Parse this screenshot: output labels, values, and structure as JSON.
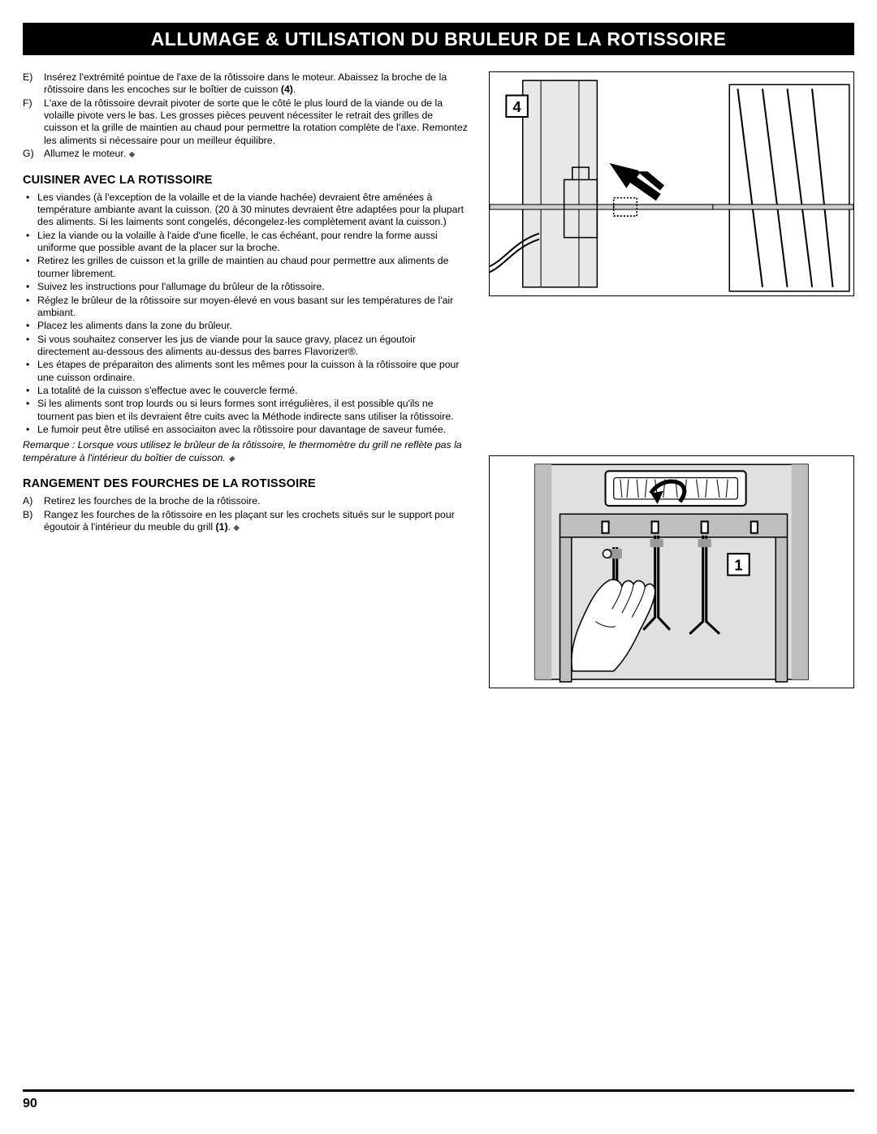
{
  "title": "ALLUMAGE & UTILISATION DU BRULEUR DE LA ROTISSOIRE",
  "page_number": "90",
  "lettered_steps": [
    {
      "marker": "E)",
      "text": "Insérez l'extrémité pointue de l'axe de la rôtissoire dans le moteur. Abaissez la broche de la rôtissoire dans les encoches sur le boîtier de cuisson ",
      "bold_suffix": "(4)",
      "after": "."
    },
    {
      "marker": "F)",
      "text": "L'axe de la rôtissoire devrait pivoter de sorte que le côté le plus lourd de la viande ou de la volaille pivote vers le bas. Les grosses pièces peuvent nécessiter le retrait des grilles de cuisson et la grille de maintien au chaud pour permettre la rotation complète de l'axe. Remontez les aliments si nécessaire pour un meilleur équilibre."
    },
    {
      "marker": "G)",
      "text": "Allumez le moteur. ",
      "diamond": true
    }
  ],
  "section1": {
    "heading": "CUISINER AVEC LA ROTISSOIRE",
    "bullets": [
      "Les viandes (à l'exception de la volaille et de la viande hachée) devraient être aménées à température ambiante avant la cuisson. (20 à 30 minutes devraient être adaptées pour la plupart des aliments. Si les laiments sont congelés, décongelez-les complètement avant la cuisson.)",
      "Liez la viande ou la volaille à l'aide d'une ficelle, le cas échéant, pour rendre la forme aussi uniforme que possible avant de la placer sur la broche.",
      "Retirez les grilles de cuisson et la grille de maintien au chaud pour permettre aux aliments de tourner librement.",
      "Suivez les instructions pour l'allumage du brûleur de la rôtissoire.",
      "Réglez le brûleur de la rôtissoire sur moyen-élevé en vous basant sur les températures de l'air ambiant.",
      "Placez les aliments dans la zone du brûleur.",
      "Si vous souhaitez conserver les jus de viande pour la sauce gravy, placez un égoutoir directement au-dessous des aliments au-dessus des barres Flavorizer®.",
      "Les étapes de préparaiton des aliments sont les mêmes pour la cuisson à la rôtissoire que pour une cuisson ordinaire.",
      "La totalité de la cuisson s'effectue avec le couvercle fermé.",
      "Si les aliments sont trop lourds ou si leurs formes sont irrégulières, il est possible qu'ils ne tournent pas bien et ils devraient être cuits avec la Méthode indirecte sans utiliser la rôtissoire.",
      "Le fumoir peut être utilisé en associaiton avec la rôtissoire pour davantage de saveur fumée."
    ],
    "note": "Remarque : Lorsque vous utilisez le brûleur de la rôtissoire, le thermomètre du grill ne reflète pas la température à l'intérieur du boîtier de cuisson. "
  },
  "section2": {
    "heading": "RANGEMENT DES FOURCHES DE LA ROTISSOIRE",
    "steps": [
      {
        "marker": "A)",
        "text": "Retirez les fourches de la broche de la rôtissoire."
      },
      {
        "marker": "B)",
        "text": "Rangez les fourches de la rôtissoire en les plaçant sur les crochets situés sur le support pour égoutoir à l'intérieur du meuble du grill ",
        "bold_suffix": "(1)",
        "after": ". ",
        "diamond": true
      }
    ]
  },
  "figure1": {
    "callout": "4",
    "colors": {
      "stroke": "#000000",
      "fill_light": "#e8e8e8",
      "fill_mid": "#cfcfcf",
      "fill_white": "#ffffff",
      "arrow": "#000000"
    }
  },
  "figure2": {
    "callout": "1",
    "colors": {
      "stroke": "#000000",
      "fill_light": "#e0e0e0",
      "fill_mid": "#bfbfbf",
      "fill_dark": "#9a9a9a",
      "fill_white": "#ffffff",
      "arrow": "#000000"
    }
  }
}
